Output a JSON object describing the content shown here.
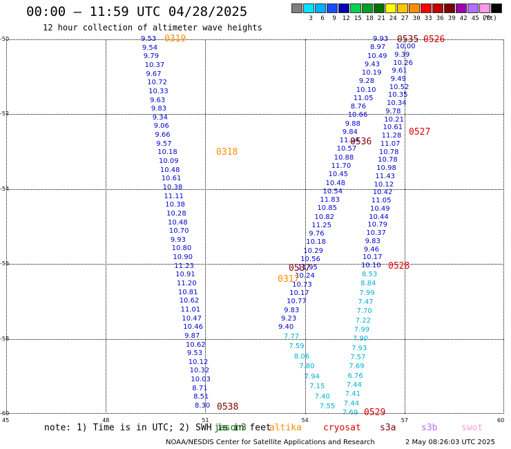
{
  "header": {
    "title": "00:00 – 11:59 UTC 04/28/2025",
    "subtitle": "12 hour collection of altimeter wave heights"
  },
  "colorbar": {
    "unit": "(ft)",
    "swatches": [
      {
        "color": "#7f7f7f",
        "label": ""
      },
      {
        "color": "#00e5ff",
        "label": "3"
      },
      {
        "color": "#00b0ff",
        "label": "6"
      },
      {
        "color": "#1a4cff",
        "label": "9"
      },
      {
        "color": "#0000b3",
        "label": "12"
      },
      {
        "color": "#00d34f",
        "label": "15"
      },
      {
        "color": "#00a020",
        "label": "18"
      },
      {
        "color": "#007000",
        "label": "21"
      },
      {
        "color": "#ffff00",
        "label": "24"
      },
      {
        "color": "#ffc400",
        "label": "27"
      },
      {
        "color": "#ff8c00",
        "label": "30"
      },
      {
        "color": "#ff0000",
        "label": "33"
      },
      {
        "color": "#c00000",
        "label": "36"
      },
      {
        "color": "#7a0000",
        "label": "39"
      },
      {
        "color": "#a000b0",
        "label": "42"
      },
      {
        "color": "#b46eff",
        "label": "45"
      },
      {
        "color": "#ff99e6",
        "label": "70"
      },
      {
        "color": "#000000",
        "label": ""
      }
    ]
  },
  "axes": {
    "lat_ticks": [
      "-50",
      "-52",
      "-54",
      "-56",
      "-58",
      "-60"
    ],
    "lon_ticks": [
      "45",
      "48",
      "51",
      "54",
      "57",
      "60"
    ],
    "grid": true
  },
  "colors": {
    "blue": "#0000c8",
    "cyan": "#00b0d0",
    "orange": "#ff8c00",
    "darkred": "#800000",
    "red": "#e00000"
  },
  "tracks": [
    {
      "label": "0319",
      "labelColor": "#ff8c00",
      "color": "#0000c8",
      "values": [
        "9.53",
        "9.54",
        "9.79",
        "10.37",
        "9.67",
        "10.72",
        "10.33",
        "9.63",
        "9.83",
        "9.34",
        "9.06",
        "9.66",
        "9.57",
        "10.18",
        "10.09",
        "10.48",
        "10.61",
        "10.38",
        "11.11",
        "10.38",
        "10.28",
        "10.48",
        "10.70",
        "9.93",
        "10.80",
        "10.90",
        "11.23",
        "10.91",
        "11.20",
        "10.81",
        "10.62",
        "11.01",
        "10.47",
        "10.46",
        "9.87",
        "10.62",
        "9.53",
        "10.12",
        "10.32",
        "10.03",
        "8.71",
        "8.51",
        "8.30"
      ]
    },
    {
      "label": "0318",
      "labelColor": "#ff8c00"
    },
    {
      "label": "0538",
      "labelColor": "#800000"
    },
    {
      "label": "0536",
      "labelColor": "#800000",
      "color": "#0000c8",
      "values": [
        "9.93",
        "8.97",
        "10.49",
        "9.43",
        "10.19",
        "9.28",
        "10.10",
        "11.05",
        "8.76",
        "10.66",
        "9.88",
        "9.84",
        "11.04",
        "10.57",
        "10.88",
        "11.70",
        "10.45",
        "10.48",
        "10.54",
        "11.83",
        "10.85",
        "10.82",
        "11.25",
        "9.76",
        "10.18",
        "10.29",
        "10.56",
        "11.95",
        "10.24",
        "10.73",
        "10.17",
        "10.77",
        "9.83",
        "9.23",
        "9.40"
      ]
    },
    {
      "label": "0537",
      "labelColor": "#800000"
    },
    {
      "label": "0317",
      "labelColor": "#ff8c00"
    },
    {
      "label": "0535",
      "labelColor": "#800000"
    },
    {
      "label": "0526",
      "labelColor": "#e00000",
      "color": "#0000c8",
      "values": [
        "10.00",
        "9.39",
        "10.26",
        "9.61",
        "9.49",
        "10.52",
        "10.35",
        "10.34",
        "9.78",
        "10.21",
        "10.61",
        "11.28",
        "11.07",
        "10.78",
        "10.78",
        "10.98",
        "11.43",
        "10.12",
        "10.42",
        "11.05",
        "10.49",
        "10.44",
        "10.79",
        "10.37",
        "9.83",
        "9.46",
        "10.17",
        "10.10"
      ]
    },
    {
      "label": "0527",
      "labelColor": "#e00000"
    },
    {
      "label": "0528",
      "labelColor": "#e00000",
      "color": "#00b0d0",
      "values": [
        "8.53",
        "8.84",
        "7.99",
        "7.47",
        "7.70",
        "7.22",
        "7.99",
        "7.90",
        "7.93",
        "7.57",
        "7.69",
        "6.76",
        "7.44",
        "7.41",
        "7.44",
        "7.69"
      ]
    },
    {
      "label": "0529",
      "labelColor": "#e00000"
    },
    {
      "label": "",
      "color": "#00b0d0",
      "values": [
        "7.77",
        "7.59",
        "8.06",
        "7.80",
        "7.94",
        "7.15",
        "7.40",
        "7.55"
      ]
    }
  ],
  "footer": {
    "note": "note: 1) Time is in UTC; 2) SWH is in feet",
    "legend": [
      {
        "name": "jason3",
        "color": "#007000"
      },
      {
        "name": "altika",
        "color": "#ff8c00"
      },
      {
        "name": "cryosat",
        "color": "#e00000"
      },
      {
        "name": "s3a",
        "color": "#800000"
      },
      {
        "name": "s3b",
        "color": "#b46eff"
      },
      {
        "name": "swot",
        "color": "#ff99e6"
      }
    ],
    "credit": "NOAA/NESDIS Center for Satellite Applications and Research",
    "timestamp": "2 May 08:26:03 UTC 2025"
  }
}
